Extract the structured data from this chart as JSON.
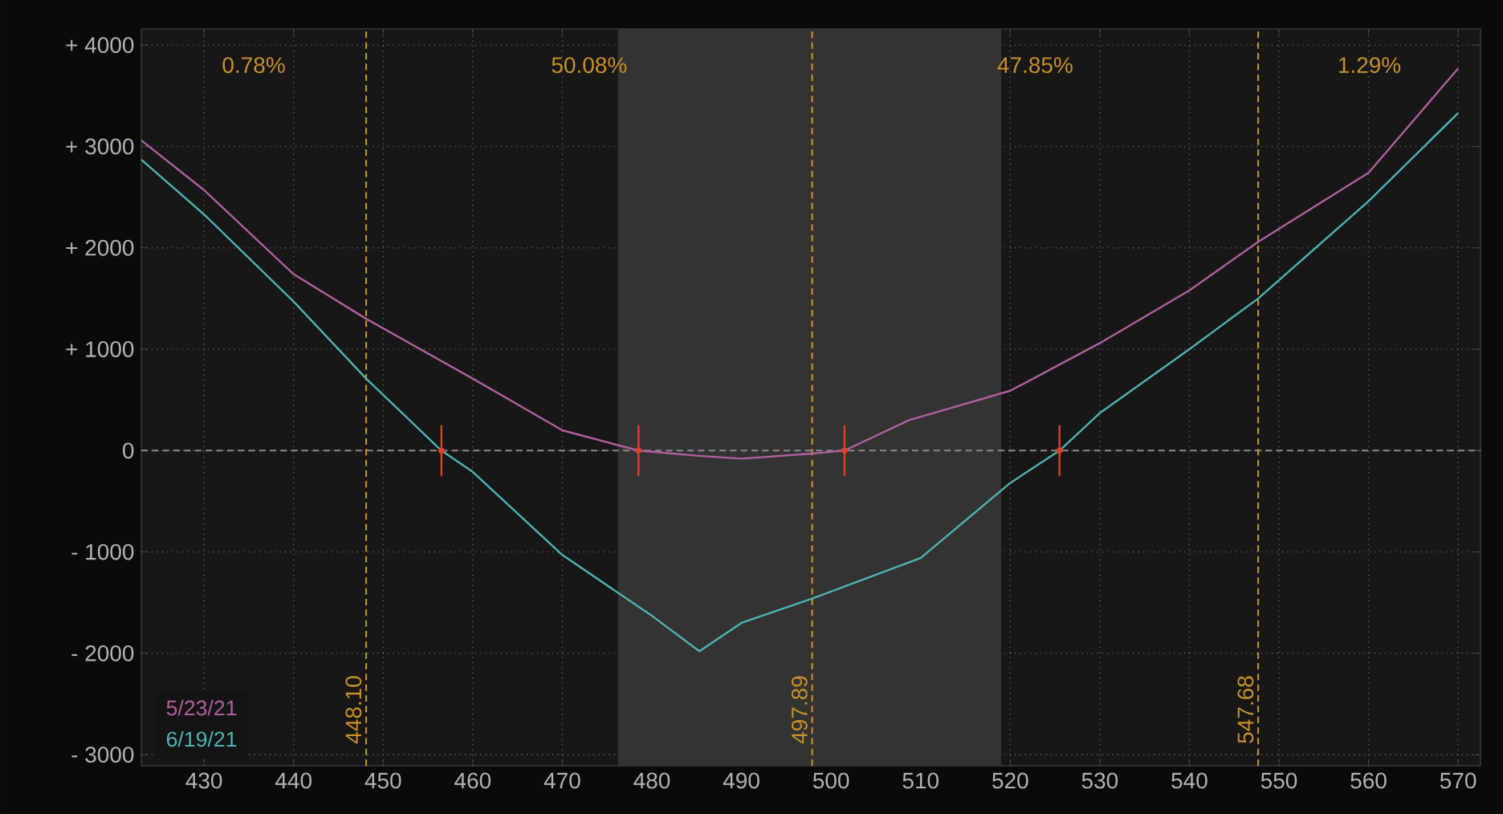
{
  "chart_data": {
    "type": "line",
    "xlim": [
      423,
      572.5
    ],
    "ylim": [
      -3110,
      4160
    ],
    "xticks": [
      430,
      440,
      450,
      460,
      470,
      480,
      490,
      500,
      510,
      520,
      530,
      540,
      550,
      560,
      570
    ],
    "yticks": [
      {
        "value": 4000,
        "label": "+ 4000"
      },
      {
        "value": 3000,
        "label": "+ 3000"
      },
      {
        "value": 2000,
        "label": "+ 2000"
      },
      {
        "value": 1000,
        "label": "+ 1000"
      },
      0,
      {
        "value": -1000,
        "label": "- 1000"
      },
      {
        "value": -2000,
        "label": "- 2000"
      },
      {
        "value": -3000,
        "label": "- 3000"
      }
    ],
    "grid": true,
    "legend": "bottom left",
    "marker": "none",
    "line_style": "solid",
    "series": [
      {
        "name": "5/23/21",
        "color": "#b05fa0",
        "x": [
          423,
          430,
          440,
          448.1,
          460,
          470,
          478.5,
          485,
          490,
          497.89,
          501.5,
          508.7,
          520,
          530,
          540,
          547.68,
          560,
          570
        ],
        "values": [
          3060,
          2570,
          1740,
          1300,
          710,
          200,
          0,
          -50,
          -80,
          -30,
          0,
          300,
          590,
          1060,
          1580,
          2060,
          2740,
          3770
        ]
      },
      {
        "name": "6/19/21",
        "color": "#4fb3b3",
        "x": [
          423,
          430,
          440,
          448.1,
          456.5,
          460,
          470,
          480,
          485.3,
          490,
          497.89,
          510,
          520,
          525.5,
          530,
          540,
          547.68,
          560,
          570
        ],
        "values": [
          2870,
          2330,
          1470,
          710,
          0,
          -210,
          -1030,
          -1630,
          -1980,
          -1700,
          -1460,
          -1060,
          -320,
          0,
          370,
          1000,
          1500,
          2460,
          3330
        ]
      },
      {
        "type": "scatter",
        "color": "#e0402a",
        "marker": "circle",
        "x": [
          456.5,
          478.5,
          501.5,
          525.5
        ],
        "values": [
          0,
          0,
          0,
          0
        ],
        "errors": [
          250,
          250,
          250,
          250
        ]
      }
    ],
    "bands": [
      {
        "axis": "x",
        "from": 476.2,
        "to": 519,
        "color": "#333333"
      }
    ],
    "ref_lines": [
      {
        "axis": "y",
        "value": 0,
        "color": "#8a8a8a",
        "line_style": "dashed"
      },
      {
        "axis": "x",
        "value": 448.1,
        "label": "448.10",
        "color": "#c8902a",
        "line_style": "dashed"
      },
      {
        "axis": "x",
        "value": 497.89,
        "label": "497.89",
        "color": "#c8902a",
        "line_style": "dashed"
      },
      {
        "axis": "x",
        "value": 547.68,
        "label": "547.68",
        "color": "#c8902a",
        "line_style": "dashed"
      }
    ],
    "annotations": [
      "0.78%",
      "50.08%",
      "47.85%",
      "1.29%"
    ]
  }
}
